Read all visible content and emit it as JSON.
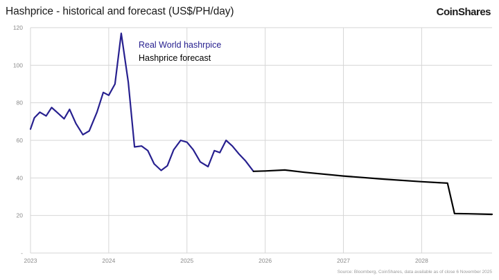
{
  "header": {
    "title": "Hashprice - historical and forecast (US$/PH/day)",
    "brand": "CoinShares"
  },
  "footer": {
    "source": "Source: Bloomberg, CoinShares, data available as of close 6 November 2025"
  },
  "chart_data": {
    "type": "line",
    "title": "Hashprice - historical and forecast (US$/PH/day)",
    "xlabel": "",
    "ylabel": "",
    "x_tick_labels": [
      "2023",
      "2024",
      "2025",
      "2026",
      "2027",
      "2028"
    ],
    "y_tick_labels": [
      "-",
      "20",
      "40",
      "60",
      "80",
      "100",
      "120"
    ],
    "y_ticks": [
      0,
      20,
      40,
      60,
      80,
      100,
      120
    ],
    "xlim": [
      2023.0,
      2028.9
    ],
    "ylim": [
      0,
      120
    ],
    "grid": true,
    "legend_position": "top-center",
    "series": [
      {
        "name": "Real World hashrpice",
        "color": "#27208f",
        "points": [
          [
            2023.0,
            66
          ],
          [
            2023.05,
            72
          ],
          [
            2023.12,
            75
          ],
          [
            2023.2,
            73
          ],
          [
            2023.27,
            77.5
          ],
          [
            2023.35,
            74.5
          ],
          [
            2023.43,
            71.5
          ],
          [
            2023.5,
            76.5
          ],
          [
            2023.58,
            69
          ],
          [
            2023.67,
            63
          ],
          [
            2023.75,
            65
          ],
          [
            2023.85,
            75
          ],
          [
            2023.93,
            85.5
          ],
          [
            2024.0,
            84
          ],
          [
            2024.08,
            90
          ],
          [
            2024.16,
            117
          ],
          [
            2024.25,
            91
          ],
          [
            2024.33,
            56.5
          ],
          [
            2024.42,
            57
          ],
          [
            2024.5,
            54.5
          ],
          [
            2024.58,
            47.5
          ],
          [
            2024.67,
            44
          ],
          [
            2024.75,
            46.5
          ],
          [
            2024.83,
            55
          ],
          [
            2024.92,
            60
          ],
          [
            2025.0,
            59
          ],
          [
            2025.08,
            55
          ],
          [
            2025.17,
            48.5
          ],
          [
            2025.27,
            46
          ],
          [
            2025.35,
            54.5
          ],
          [
            2025.42,
            53.5
          ],
          [
            2025.5,
            60
          ],
          [
            2025.58,
            57
          ],
          [
            2025.67,
            52.5
          ],
          [
            2025.75,
            49
          ],
          [
            2025.85,
            43.5
          ]
        ]
      },
      {
        "name": "Hashprice forecast",
        "color": "#000000",
        "points": [
          [
            2025.85,
            43.5
          ],
          [
            2026.0,
            43.7
          ],
          [
            2026.25,
            44.2
          ],
          [
            2026.5,
            43.0
          ],
          [
            2027.0,
            41.0
          ],
          [
            2027.5,
            39.4
          ],
          [
            2028.0,
            38.0
          ],
          [
            2028.33,
            37.2
          ],
          [
            2028.42,
            21.0
          ],
          [
            2028.6,
            20.9
          ],
          [
            2028.9,
            20.6
          ]
        ]
      }
    ]
  }
}
